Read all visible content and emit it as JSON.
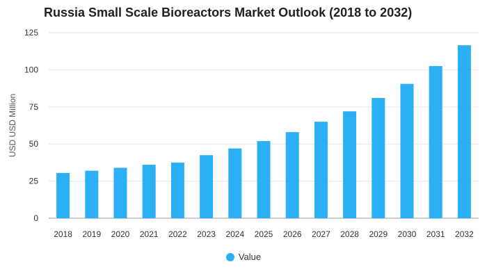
{
  "chart_data": {
    "type": "bar",
    "title": "Russia Small Scale Bioreactors Market Outlook (2018 to 2032)",
    "xlabel": "",
    "ylabel": "USD USD Million",
    "categories": [
      "2018",
      "2019",
      "2020",
      "2021",
      "2022",
      "2023",
      "2024",
      "2025",
      "2026",
      "2027",
      "2028",
      "2029",
      "2030",
      "2031",
      "2032"
    ],
    "series": [
      {
        "name": "Value",
        "values": [
          30.5,
          32,
          34,
          36,
          37.5,
          42.5,
          47,
          52,
          58,
          65,
          72,
          81,
          90.5,
          102.5,
          116.5
        ]
      }
    ],
    "ylim": [
      0,
      125
    ],
    "yticks": [
      "0",
      "25",
      "50",
      "75",
      "100",
      "125"
    ],
    "grid": true,
    "legend_position": "bottom",
    "colors": {
      "bar": "#2bb0f5",
      "grid": "#e6e6e6"
    }
  }
}
